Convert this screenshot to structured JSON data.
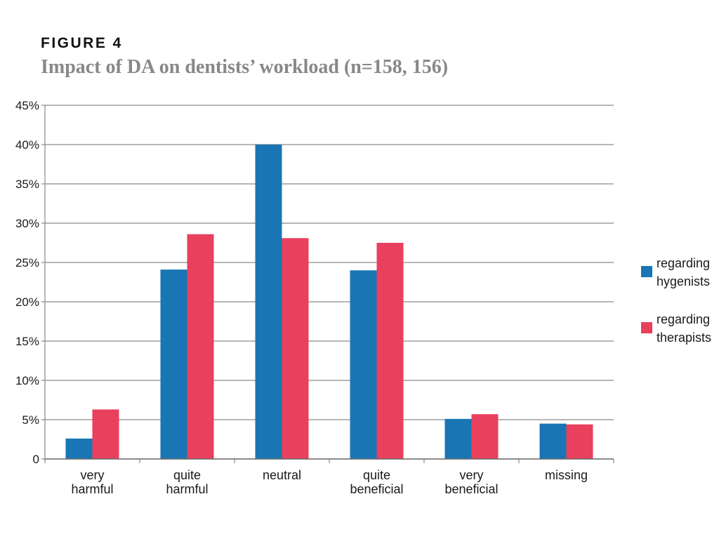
{
  "figure": {
    "label": "FIGURE 4",
    "title": "Impact of DA on dentists’ workload (n=158, 156)"
  },
  "chart_data": {
    "type": "bar",
    "categories": [
      [
        "very",
        "harmful"
      ],
      [
        "quite",
        "harmful"
      ],
      [
        "neutral"
      ],
      [
        "quite",
        "beneficial"
      ],
      [
        "very",
        "beneficial"
      ],
      [
        "missing"
      ]
    ],
    "series": [
      {
        "name": "regarding hygenists",
        "color": "#1a75b4",
        "values": [
          2.6,
          24.1,
          40.0,
          24.0,
          5.1,
          4.5
        ]
      },
      {
        "name": "regarding therapists",
        "color": "#e8405d",
        "values": [
          6.3,
          28.6,
          28.1,
          27.5,
          5.7,
          4.4
        ]
      }
    ],
    "yticks": [
      "0",
      "5%",
      "10%",
      "15%",
      "20%",
      "25%",
      "30%",
      "35%",
      "40%",
      "45%"
    ],
    "ylim": [
      0,
      45
    ],
    "grid": true,
    "legend_position": "right"
  },
  "legend": {
    "items": [
      {
        "line1": "regarding",
        "line2": "hygenists"
      },
      {
        "line1": "regarding",
        "line2": "therapists"
      }
    ]
  }
}
